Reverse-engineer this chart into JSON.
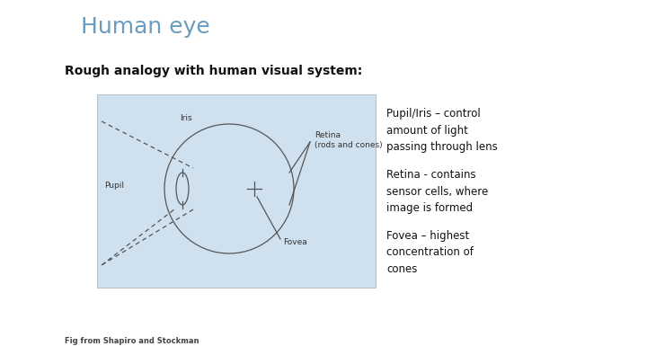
{
  "title": "Human eye",
  "title_color": "#6b9cbd",
  "title_fontsize": 18,
  "subtitle": "Rough analogy with human visual system:",
  "subtitle_fontsize": 10,
  "bullet1": "Pupil/Iris – control\namount of light\npassing through lens",
  "bullet2": "Retina - contains\nsensor cells, where\nimage is formed",
  "bullet3": "Fovea – highest\nconcentration of\ncones",
  "footnote": "Fig from Shapiro and Stockman",
  "bg_color": "#ffffff",
  "text_color": "#111111",
  "bullet_fontsize": 8.5,
  "img_bg": "#cfe0ee",
  "diagram_color": "#555555"
}
